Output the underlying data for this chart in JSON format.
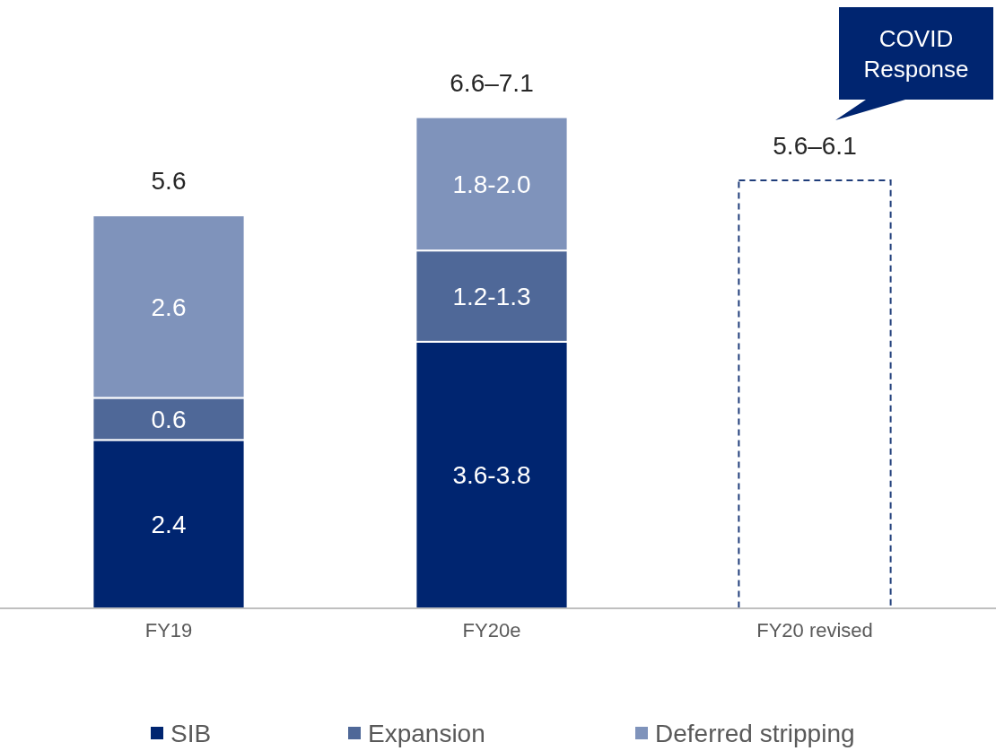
{
  "chart_data": {
    "type": "bar",
    "stacked": true,
    "categories": [
      "FY19",
      "FY20e",
      "FY20 revised"
    ],
    "series": [
      {
        "name": "SIB",
        "color": "#002570",
        "values": [
          2.4,
          3.8,
          null
        ],
        "value_labels": [
          "2.4",
          "3.6-3.8",
          null
        ]
      },
      {
        "name": "Expansion",
        "color": "#4f6898",
        "values": [
          0.6,
          1.3,
          null
        ],
        "value_labels": [
          "0.6",
          "1.2-1.3",
          null
        ]
      },
      {
        "name": "Deferred stripping",
        "color": "#7f93bb",
        "values": [
          2.6,
          1.9,
          null
        ],
        "value_labels": [
          "2.6",
          "1.8-2.0",
          null
        ]
      },
      {
        "color": "#1f3d7a",
        "line_style": "dashed",
        "values": [
          null,
          null,
          6.1
        ]
      }
    ],
    "totals": [
      "5.6",
      "6.6–7.1",
      "5.6–6.1"
    ],
    "annotations": [
      "COVID Response"
    ],
    "legend": "bottom"
  }
}
